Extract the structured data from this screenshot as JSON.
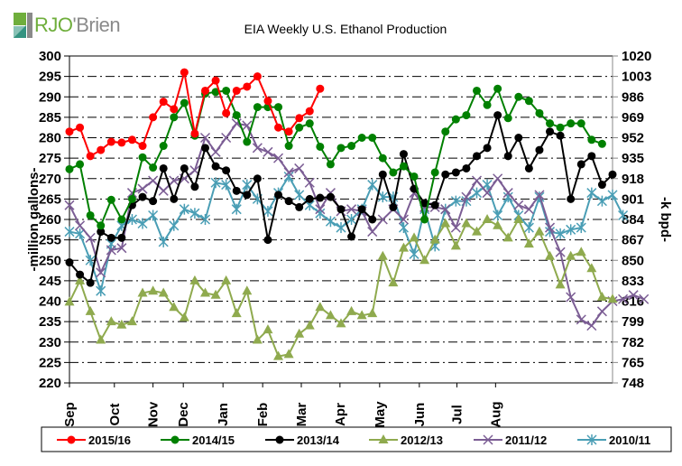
{
  "logo": {
    "part1": "RJO",
    "part2": "'Brien"
  },
  "chart_data": {
    "type": "line",
    "title": "EIA Weekly U.S. Ethanol Production",
    "ylabel": "-million gallons-",
    "y2label": "-k bpd-",
    "xlabel": "",
    "ylim": [
      220,
      300
    ],
    "y_ticks": [
      220,
      225,
      230,
      235,
      240,
      245,
      250,
      255,
      260,
      265,
      270,
      275,
      280,
      285,
      290,
      295,
      300
    ],
    "y2_ticks": [
      748,
      765,
      782,
      799,
      816,
      833,
      850,
      867,
      884,
      901,
      918,
      935,
      952,
      969,
      986,
      1003,
      1020
    ],
    "x_ticks": [
      {
        "label": "Sep",
        "week": 0
      },
      {
        "label": "Oct",
        "week": 4.3
      },
      {
        "label": "Nov",
        "week": 8.0
      },
      {
        "label": "Dec",
        "week": 10.9
      },
      {
        "label": "Jan",
        "week": 14.7
      },
      {
        "label": "Feb",
        "week": 18.5
      },
      {
        "label": "Mar",
        "week": 22.2
      },
      {
        "label": "Apr",
        "week": 25.9
      },
      {
        "label": "May",
        "week": 29.7
      },
      {
        "label": "Jun",
        "week": 33.5
      },
      {
        "label": "Jul",
        "week": 37.1
      },
      {
        "label": "Aug",
        "week": 40.8
      }
    ],
    "x_range_weeks": [
      0,
      52
    ],
    "grid": "horizontal dash-dot",
    "legend_position": "bottom",
    "series": [
      {
        "name": "2015/16",
        "color": "#ff0000",
        "marker": "circle",
        "values": [
          281.5,
          282.5,
          275.5,
          277,
          279,
          278.8,
          279.5,
          278,
          285,
          288.8,
          287,
          296,
          281,
          291.5,
          294,
          286,
          291.5,
          292.5,
          295,
          289,
          282.5,
          281.5,
          284.8,
          286.5,
          292
        ]
      },
      {
        "name": "2014/15",
        "color": "#008000",
        "marker": "circle",
        "values": [
          272.3,
          273.5,
          261,
          258.5,
          264.8,
          260,
          265,
          275.2,
          272.7,
          278,
          285,
          288.5,
          280.5,
          290.8,
          291.2,
          291.5,
          285.5,
          279,
          287.5,
          287.5,
          287.5,
          278,
          282.5,
          283.5,
          277.8,
          273.5,
          277.5,
          278,
          280,
          280,
          275,
          271.5,
          273,
          270.5,
          260,
          271.5,
          281.5,
          284.5,
          285.5,
          291.5,
          288,
          292,
          284.8,
          290,
          289,
          286,
          283.5,
          282.5,
          283.5,
          283.5,
          279.5,
          278.5
        ]
      },
      {
        "name": "2013/14",
        "color": "#000000",
        "marker": "circle",
        "values": [
          249.5,
          246.5,
          244.5,
          257,
          255.5,
          255.5,
          263.5,
          265.5,
          264.5,
          272.5,
          265,
          272.5,
          268,
          277.5,
          273,
          272,
          267,
          266,
          270,
          255,
          266,
          264.5,
          263,
          265,
          265.3,
          265.5,
          262.5,
          255.8,
          262.5,
          260,
          271,
          263,
          276,
          267.5,
          264,
          263.5,
          271,
          271.5,
          272.5,
          275.5,
          277.5,
          285.5,
          275.5,
          280,
          272.5,
          277,
          281.5,
          280.5,
          265,
          273.5,
          275.5,
          268.5,
          271
        ]
      },
      {
        "name": "2012/13",
        "color": "#8faa4e",
        "marker": "triangle",
        "values": [
          239.8,
          245,
          237.5,
          230.5,
          235,
          234.2,
          235,
          242,
          242.5,
          242,
          238.5,
          236,
          245,
          242,
          241.5,
          245,
          237,
          242.5,
          230.5,
          233,
          226.5,
          227,
          232,
          234,
          238.5,
          236.5,
          234.5,
          237.5,
          236.5,
          237,
          251,
          244.5,
          253,
          255.5,
          250,
          255,
          259,
          253.5,
          259,
          257,
          260,
          258.5,
          255.5,
          260,
          254,
          257,
          251,
          244,
          251,
          252,
          248,
          241,
          240.5
        ]
      },
      {
        "name": "2011/12",
        "color": "#7b5d94",
        "marker": "x",
        "values": [
          263.5,
          258.5,
          255.5,
          247,
          252.5,
          253,
          266.5,
          267.5,
          269.5,
          267,
          269.5,
          270,
          272,
          280,
          276.5,
          280,
          283.5,
          283,
          277.5,
          276.5,
          275,
          271.5,
          272.5,
          269,
          262.5,
          266.5,
          262,
          262.5,
          262,
          257,
          260,
          262.5,
          260,
          266.5,
          263,
          263,
          262.5,
          258,
          265.5,
          269.5,
          266.5,
          270,
          266.5,
          263.5,
          262.5,
          266,
          258,
          252,
          241,
          235.5,
          234,
          237.5,
          240,
          240.5,
          241.5,
          240.5
        ]
      },
      {
        "name": "2010/11",
        "color": "#4a9eb5",
        "marker": "star",
        "values": [
          257,
          256.5,
          250,
          242.5,
          254,
          258.5,
          260,
          259,
          261,
          254.5,
          258.5,
          262.5,
          261.5,
          260,
          269,
          268.5,
          262.5,
          268.5,
          265,
          262,
          266.5,
          270.5,
          266,
          263.5,
          261.5,
          259.5,
          258,
          260,
          262.5,
          268.5,
          265.5,
          265.5,
          258,
          251.5,
          262.5,
          253.5,
          262.5,
          264.5,
          264.5,
          266.5,
          268.5,
          261,
          265.5,
          261,
          258,
          265.5,
          257,
          256.5,
          257.5,
          258,
          266.5,
          264.5,
          266,
          261
        ]
      }
    ]
  }
}
